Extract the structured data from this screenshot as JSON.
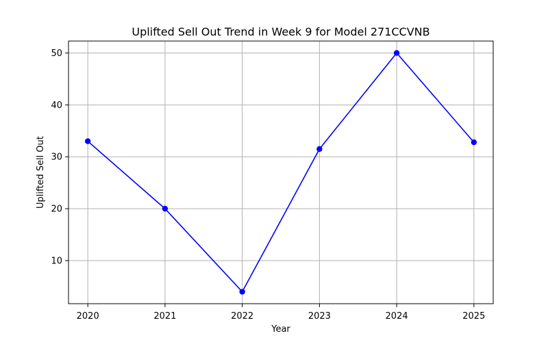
{
  "chart_data": {
    "type": "line",
    "title": "Uplifted Sell Out Trend in Week 9 for Model 271CCVNB",
    "xlabel": "Year",
    "ylabel": "Uplifted Sell Out",
    "x": [
      2020,
      2021,
      2022,
      2023,
      2024,
      2025
    ],
    "x_tick_labels": [
      "2020",
      "2021",
      "2022",
      "2023",
      "2024",
      "2025"
    ],
    "y_ticks": [
      10,
      20,
      30,
      40,
      50
    ],
    "y_tick_labels": [
      "10",
      "20",
      "30",
      "40",
      "50"
    ],
    "xlim": [
      2019.75,
      2025.25
    ],
    "ylim": [
      1.7,
      52.3
    ],
    "grid": true,
    "series": [
      {
        "values": [
          33,
          20,
          4,
          31.5,
          50,
          32.8
        ],
        "color": "#0000ff",
        "marker": "circle"
      }
    ]
  }
}
